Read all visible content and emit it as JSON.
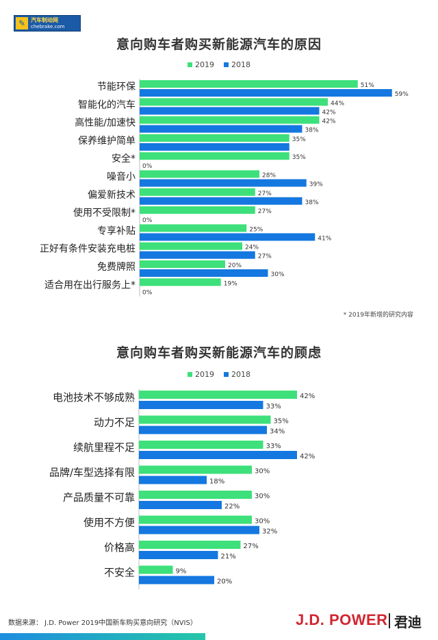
{
  "logo": {
    "line1": "汽车制动网",
    "line2": "chebrake.com"
  },
  "colors": {
    "y2019": "#3de07a",
    "y2018": "#1478e0"
  },
  "chart_data": [
    {
      "type": "bar",
      "orientation": "horizontal",
      "title": "意向购车者购买新能源汽车的原因",
      "legend": [
        "2019",
        "2018"
      ],
      "categories": [
        "节能环保",
        "智能化的汽车",
        "高性能/加速快",
        "保养维护简单",
        "安全*",
        "噪音小",
        "偏爱新技术",
        "使用不受限制*",
        "专享补贴",
        "正好有条件安装充电桩",
        "免费牌照",
        "适合用在出行服务上*"
      ],
      "series": [
        {
          "name": "2019",
          "values": [
            51,
            44,
            42,
            35,
            35,
            28,
            27,
            27,
            25,
            24,
            20,
            19
          ],
          "labels": [
            "51%",
            "44%",
            "42%",
            "35%",
            "35%",
            "28%",
            "27%",
            "27%",
            "25%",
            "24%",
            "20%",
            "19%"
          ]
        },
        {
          "name": "2018",
          "values": [
            59,
            42,
            38,
            35,
            0,
            39,
            38,
            0,
            41,
            27,
            30,
            0
          ],
          "labels": [
            "59%",
            "42%",
            "38%",
            "",
            "0%",
            "39%",
            "38%",
            "0%",
            "41%",
            "27%",
            "30%",
            "0%"
          ]
        }
      ],
      "note": "* 2019年新增的研究内容"
    },
    {
      "type": "bar",
      "orientation": "horizontal",
      "title": "意向购车者购买新能源汽车的顾虑",
      "legend": [
        "2019",
        "2018"
      ],
      "categories": [
        "电池技术不够成熟",
        "动力不足",
        "续航里程不足",
        "品牌/车型选择有限",
        "产品质量不可靠",
        "使用不方便",
        "价格高",
        "不安全"
      ],
      "series": [
        {
          "name": "2019",
          "values": [
            42,
            35,
            33,
            30,
            30,
            30,
            27,
            9
          ],
          "labels": [
            "42%",
            "35%",
            "33%",
            "30%",
            "30%",
            "30%",
            "27%",
            "9%"
          ]
        },
        {
          "name": "2018",
          "values": [
            33,
            34,
            42,
            18,
            22,
            32,
            21,
            20
          ],
          "labels": [
            "33%",
            "34%",
            "42%",
            "18%",
            "22%",
            "32%",
            "21%",
            "20%"
          ]
        }
      ]
    }
  ],
  "footer": {
    "source": "数据来源： J.D. Power 2019中国新车购买意向研究（NVIS）",
    "brand": "J.D. POWER",
    "brand_cn": "君迪"
  }
}
